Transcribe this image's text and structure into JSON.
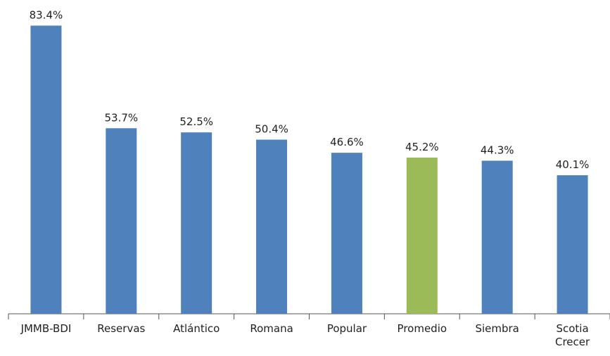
{
  "chart_data": {
    "type": "bar",
    "categories": [
      "JMMB-BDI",
      "Reservas",
      "Atlántico",
      "Romana",
      "Popular",
      "Promedio",
      "Siembra",
      "Scotia Crecer"
    ],
    "values": [
      83.4,
      53.7,
      52.5,
      50.4,
      46.6,
      45.2,
      44.3,
      40.1
    ],
    "value_labels": [
      "83.4%",
      "53.7%",
      "52.5%",
      "50.4%",
      "46.6%",
      "45.2%",
      "44.3%",
      "40.1%"
    ],
    "colors": [
      "#4f81bd",
      "#4f81bd",
      "#4f81bd",
      "#4f81bd",
      "#4f81bd",
      "#9bbb59",
      "#4f81bd",
      "#4f81bd"
    ],
    "ylim": [
      0,
      90
    ]
  }
}
